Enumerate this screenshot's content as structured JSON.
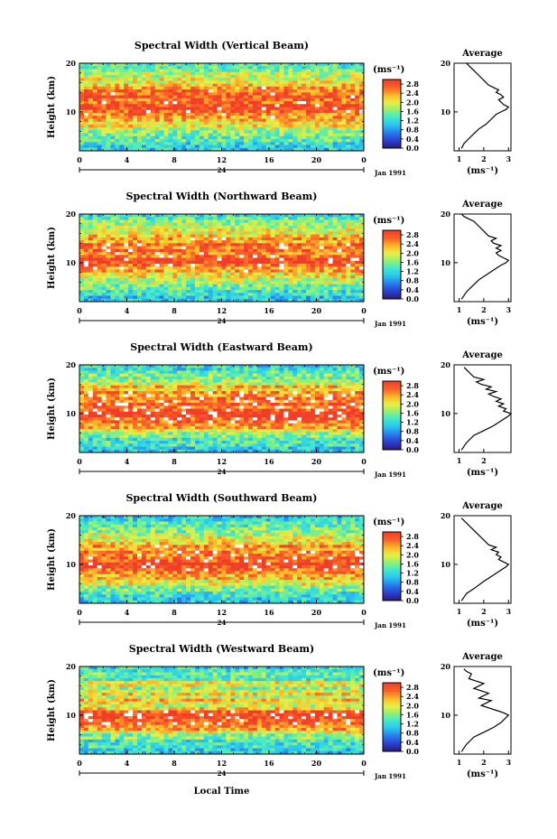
{
  "figure": {
    "xlabel": "Local Time",
    "date_label": "Jan 1991",
    "day_label": "24",
    "colorbar_unit": "(ms⁻¹)",
    "profile_title": "Average",
    "profile_xlabel": "(ms⁻¹)",
    "ylabel": "Height (km)"
  },
  "chart_data": [
    {
      "type": "heatmap",
      "title": "Spectral Width (Vertical Beam)",
      "xlabel": "",
      "ylabel": "Height (km)",
      "x_ticks": [
        "0",
        "4",
        "8",
        "12",
        "16",
        "20",
        "0"
      ],
      "y_ticks": [
        "10",
        "20"
      ],
      "xlim": [
        0,
        24
      ],
      "ylim": [
        2,
        20
      ],
      "colorbar": {
        "unit": "(ms⁻¹)",
        "ticks": [
          "0.0",
          "0.4",
          "0.8",
          "1.2",
          "1.6",
          "2.0",
          "2.4",
          "2.8"
        ],
        "range": [
          0,
          3.0
        ]
      },
      "profile": {
        "title": "Average",
        "xlabel": "(ms⁻¹)",
        "x_ticks": [
          "1",
          "2",
          "3"
        ],
        "xlim": [
          0.8,
          3.1
        ],
        "y_ticks": [
          "10",
          "20"
        ],
        "ylim": [
          2,
          20
        ],
        "x": [
          1.1,
          1.2,
          1.4,
          1.6,
          1.8,
          2.1,
          2.3,
          2.4,
          2.5,
          2.7,
          2.9,
          3.0,
          2.8,
          2.7,
          2.6,
          2.8,
          2.7,
          2.5,
          2.6,
          2.4,
          2.2,
          2.0,
          1.8,
          1.6,
          1.4,
          1.3
        ],
        "y": [
          2.5,
          3.5,
          4.5,
          5.5,
          6.5,
          7.5,
          8.5,
          9.0,
          9.5,
          10.0,
          10.5,
          11.0,
          11.5,
          12.0,
          12.5,
          13.0,
          13.5,
          14.0,
          14.5,
          15.0,
          15.5,
          16.5,
          17.5,
          18.5,
          19.5,
          20.0
        ]
      },
      "date_label": "Jan 1991",
      "day_label": "24"
    },
    {
      "type": "heatmap",
      "title": "Spectral Width (Northward Beam)",
      "xlabel": "",
      "ylabel": "Height (km)",
      "x_ticks": [
        "0",
        "4",
        "8",
        "12",
        "16",
        "20",
        "0"
      ],
      "y_ticks": [
        "10",
        "20"
      ],
      "xlim": [
        0,
        24
      ],
      "ylim": [
        2,
        20
      ],
      "colorbar": {
        "unit": "(ms⁻¹)",
        "ticks": [
          "0.0",
          "0.4",
          "0.8",
          "1.2",
          "1.6",
          "2.0",
          "2.4",
          "2.8"
        ],
        "range": [
          0,
          3.0
        ]
      },
      "profile": {
        "title": "Average",
        "xlabel": "(ms⁻¹)",
        "x_ticks": [
          "1",
          "2",
          "3"
        ],
        "xlim": [
          0.8,
          3.1
        ],
        "y_ticks": [
          "10",
          "20"
        ],
        "ylim": [
          2,
          20
        ],
        "x": [
          1.1,
          1.3,
          1.5,
          1.8,
          2.1,
          2.4,
          2.7,
          2.9,
          3.0,
          2.8,
          2.6,
          2.5,
          2.7,
          2.5,
          2.7,
          2.4,
          2.3,
          2.5,
          2.2,
          2.0,
          1.8,
          1.6,
          1.4,
          1.2,
          1.1
        ],
        "y": [
          2.5,
          4.0,
          5.0,
          6.5,
          7.5,
          8.5,
          9.5,
          10.0,
          10.5,
          11.0,
          11.5,
          12.0,
          12.5,
          13.0,
          13.5,
          14.0,
          14.5,
          15.0,
          15.5,
          16.5,
          17.5,
          18.5,
          19.0,
          19.5,
          20.0
        ]
      },
      "date_label": "Jan 1991",
      "day_label": "24"
    },
    {
      "type": "heatmap",
      "title": "Spectral Width (Eastward Beam)",
      "xlabel": "",
      "ylabel": "Height (km)",
      "x_ticks": [
        "0",
        "4",
        "8",
        "12",
        "16",
        "20",
        "0"
      ],
      "y_ticks": [
        "10",
        "20"
      ],
      "xlim": [
        0,
        24
      ],
      "ylim": [
        2,
        20
      ],
      "colorbar": {
        "unit": "(ms⁻¹)",
        "ticks": [
          "0.0",
          "0.4",
          "0.8",
          "1.2",
          "1.6",
          "2.0",
          "2.4",
          "2.8"
        ],
        "range": [
          0,
          3.0
        ]
      },
      "profile": {
        "title": "Average",
        "xlabel": "(ms⁻¹)",
        "x_ticks": [
          "1",
          "2"
        ],
        "xlim": [
          0.8,
          3.1
        ],
        "y_ticks": [
          "10",
          "20"
        ],
        "ylim": [
          2,
          20
        ],
        "x": [
          1.1,
          1.3,
          1.6,
          2.0,
          2.4,
          2.7,
          3.0,
          3.1,
          2.8,
          2.9,
          2.6,
          2.8,
          2.5,
          2.7,
          2.4,
          2.2,
          2.5,
          2.1,
          2.3,
          1.9,
          1.7,
          2.0,
          1.6,
          1.4,
          1.2
        ],
        "y": [
          2.5,
          4.0,
          5.5,
          6.5,
          7.5,
          8.5,
          9.5,
          10.0,
          10.5,
          11.0,
          11.5,
          12.0,
          12.5,
          13.0,
          13.5,
          14.0,
          14.5,
          15.0,
          15.5,
          16.0,
          16.5,
          17.0,
          17.5,
          18.5,
          19.5
        ]
      },
      "date_label": "Jan 1991",
      "day_label": "24"
    },
    {
      "type": "heatmap",
      "title": "Spectral Width (Southward Beam)",
      "xlabel": "",
      "ylabel": "Height (km)",
      "x_ticks": [
        "0",
        "4",
        "8",
        "12",
        "16",
        "20",
        "0"
      ],
      "y_ticks": [
        "10",
        "20"
      ],
      "xlim": [
        0,
        24
      ],
      "ylim": [
        2,
        20
      ],
      "colorbar": {
        "unit": "(ms⁻¹)",
        "ticks": [
          "0.0",
          "0.4",
          "0.8",
          "1.2",
          "1.6",
          "2.0",
          "2.4",
          "2.8"
        ],
        "range": [
          0,
          3.0
        ]
      },
      "profile": {
        "title": "Average",
        "xlabel": "(ms⁻¹)",
        "x_ticks": [
          "1",
          "2",
          "3"
        ],
        "xlim": [
          0.8,
          3.1
        ],
        "y_ticks": [
          "10",
          "20"
        ],
        "ylim": [
          2,
          20
        ],
        "x": [
          1.1,
          1.3,
          1.6,
          2.0,
          2.3,
          2.6,
          2.9,
          3.0,
          2.8,
          2.6,
          2.7,
          2.5,
          2.6,
          2.3,
          2.5,
          2.2,
          2.0,
          1.8,
          1.6,
          1.4,
          1.2,
          1.1
        ],
        "y": [
          2.5,
          4.0,
          5.0,
          6.5,
          7.5,
          8.5,
          9.5,
          10.0,
          10.5,
          11.0,
          11.5,
          12.0,
          12.5,
          13.0,
          13.5,
          14.0,
          15.0,
          16.0,
          17.0,
          18.0,
          19.0,
          19.5
        ]
      },
      "date_label": "Jan 1991",
      "day_label": "24"
    },
    {
      "type": "heatmap",
      "title": "Spectral Width (Westward Beam)",
      "xlabel": "Local Time",
      "ylabel": "Height (km)",
      "x_ticks": [
        "0",
        "4",
        "8",
        "12",
        "16",
        "20",
        "0"
      ],
      "y_ticks": [
        "10",
        "20"
      ],
      "xlim": [
        0,
        24
      ],
      "ylim": [
        2,
        20
      ],
      "colorbar": {
        "unit": "(ms⁻¹)",
        "ticks": [
          "0.0",
          "0.4",
          "0.8",
          "1.2",
          "1.6",
          "2.0",
          "2.4",
          "2.8"
        ],
        "range": [
          0,
          3.0
        ]
      },
      "profile": {
        "title": "Average",
        "xlabel": "(ms⁻¹)",
        "x_ticks": [
          "1",
          "2",
          "3"
        ],
        "xlim": [
          0.8,
          3.1
        ],
        "y_ticks": [
          "10",
          "20"
        ],
        "ylim": [
          2,
          20
        ],
        "x": [
          1.1,
          1.3,
          1.6,
          2.0,
          2.4,
          2.7,
          2.9,
          3.0,
          2.8,
          2.5,
          2.2,
          1.9,
          2.1,
          2.3,
          1.8,
          2.2,
          1.9,
          1.6,
          2.0,
          1.7,
          1.4,
          1.5,
          1.3,
          1.2
        ],
        "y": [
          2.5,
          4.0,
          5.5,
          6.5,
          7.5,
          8.5,
          9.5,
          10.0,
          10.5,
          11.0,
          11.5,
          12.0,
          12.5,
          13.0,
          13.5,
          14.5,
          15.0,
          15.5,
          16.5,
          17.0,
          17.5,
          18.5,
          19.0,
          19.5
        ]
      },
      "date_label": "Jan 1991",
      "day_label": "24"
    }
  ]
}
